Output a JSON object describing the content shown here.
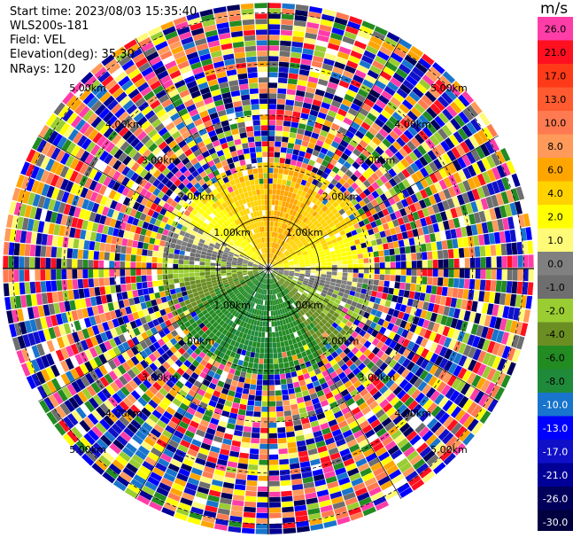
{
  "header": {
    "start_time": "Start time: 2023/08/03 15:35:40",
    "instrument": "WLS200s-181",
    "field": "Field: VEL",
    "elevation": "Elevation(deg): 35.30",
    "nrays": "NRays: 120"
  },
  "chart_data": {
    "type": "heatmap",
    "projection": "polar (PPI)",
    "title": "",
    "colorbar": {
      "unit": "m/s",
      "ticks": [
        "26.0",
        "21.0",
        "17.0",
        "13.0",
        "10.0",
        "8.0",
        "6.0",
        "4.0",
        "2.0",
        "1.0",
        "0.0",
        "-1.0",
        "-2.0",
        "-4.0",
        "-6.0",
        "-8.0",
        "-10.0",
        "-13.0",
        "-17.0",
        "-21.0",
        "-26.0",
        "-30.0"
      ],
      "tick_values": [
        26,
        21,
        17,
        13,
        10,
        8,
        6,
        4,
        2,
        1,
        0,
        -1,
        -2,
        -4,
        -6,
        -8,
        -10,
        -13,
        -17,
        -21,
        -26,
        -30
      ],
      "colors": [
        "#ff3da8",
        "#ff1020",
        "#ff3a18",
        "#ff5a30",
        "#ff7a50",
        "#ff9a5a",
        "#ffa500",
        "#ffd200",
        "#ffff00",
        "#fffa78",
        "#808080",
        "#6e6e6e",
        "#9acd32",
        "#6b8e23",
        "#228b22",
        "#1f8a3a",
        "#1874cd",
        "#0000ff",
        "#1010c8",
        "#000096",
        "#00005a",
        "#000040"
      ]
    },
    "range_rings": {
      "labels": [
        "1.00km",
        "2.00km",
        "3.00km",
        "4.00km",
        "5.00km"
      ],
      "ring_km": [
        1,
        2,
        3,
        4,
        5
      ]
    },
    "nrays": 120,
    "field": "VEL"
  }
}
